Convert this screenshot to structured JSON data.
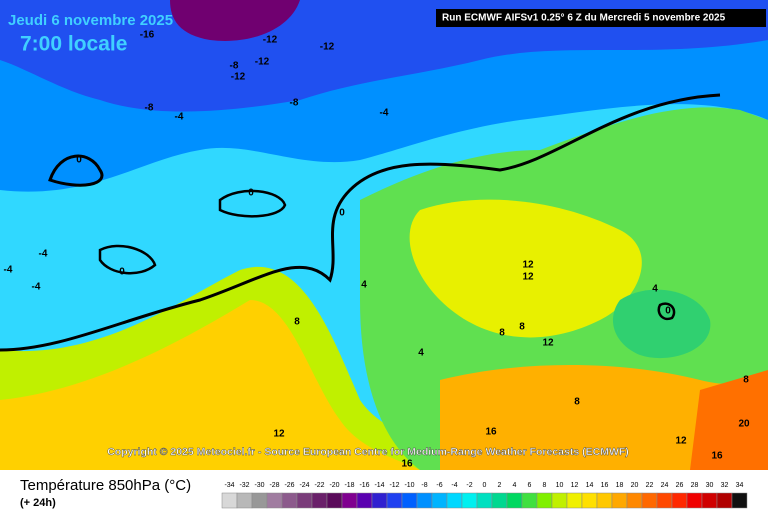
{
  "header": {
    "date": "Jeudi 6 novembre 2025",
    "time": "7:00 locale",
    "run": "Run ECMWF AIFSv1 0.25° 6 Z du Mercredi 5 novembre 2025"
  },
  "copyright": "Copyright © 2025 Meteociel.fr - Source European Centre for Medium-Range Weather Forecasts (ECMWF)",
  "footer": {
    "title": "Température 850hPa (°C)",
    "lead": "(+ 24h)"
  },
  "legend": {
    "ticks": [
      -34,
      -32,
      -30,
      -28,
      -26,
      -24,
      -22,
      -20,
      -18,
      -16,
      -14,
      -12,
      -10,
      -8,
      -6,
      -4,
      -2,
      0,
      2,
      4,
      6,
      8,
      10,
      12,
      14,
      16,
      18,
      20,
      22,
      24,
      26,
      28,
      30,
      32,
      34
    ],
    "colors": [
      "#d8d8d8",
      "#b8b8b8",
      "#989898",
      "#a07ca0",
      "#8c5a8c",
      "#7a3c7a",
      "#6a206a",
      "#5a0a5a",
      "#800090",
      "#5a00b0",
      "#3020d0",
      "#2040f0",
      "#0060ff",
      "#0090ff",
      "#00b4ff",
      "#00d8ff",
      "#00f0f0",
      "#00e0c0",
      "#00d890",
      "#00d860",
      "#40e040",
      "#80f000",
      "#c0f000",
      "#f0f000",
      "#ffe000",
      "#ffc800",
      "#ffa800",
      "#ff8800",
      "#ff6800",
      "#ff4800",
      "#ff2800",
      "#f00000",
      "#d00000",
      "#b00000",
      "#101010"
    ]
  },
  "contour_labels": [
    -16,
    -12,
    -12,
    -12,
    -8,
    -12,
    -8,
    -8,
    -4,
    -4,
    0,
    0,
    0,
    0,
    -4,
    -4,
    -4,
    4,
    8,
    12,
    12,
    8,
    8,
    12,
    4,
    4,
    0,
    8,
    8,
    12,
    16,
    12,
    20,
    16,
    16
  ]
}
